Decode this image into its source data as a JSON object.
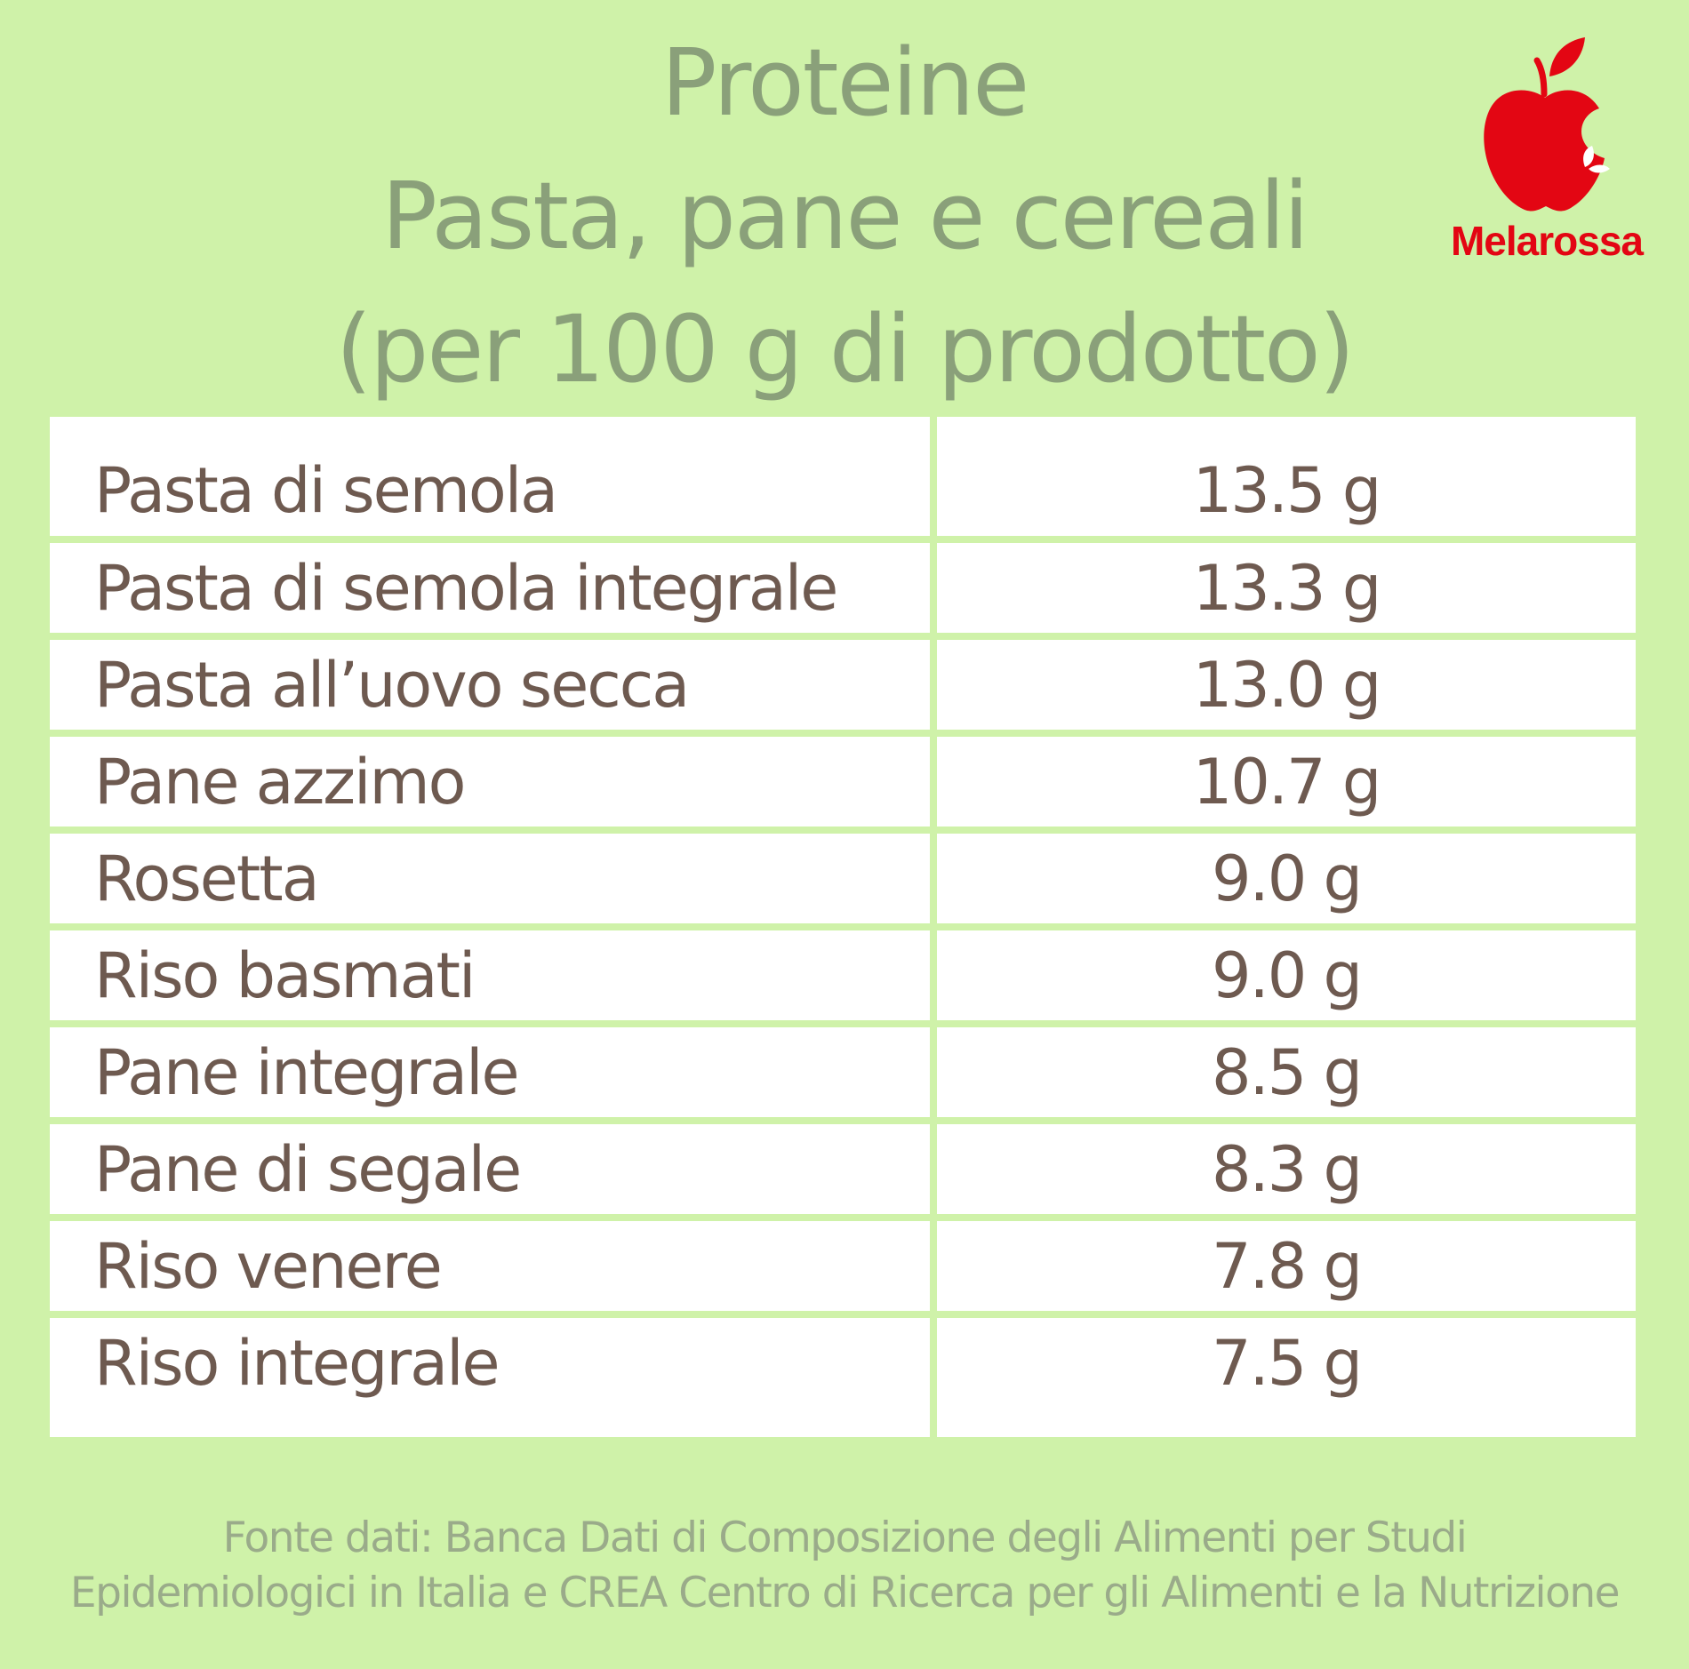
{
  "title": {
    "line1": "Proteine",
    "line2": "Pasta, pane e cereali",
    "line3": "(per 100 g di prodotto)"
  },
  "logo": {
    "brand": "Melarossa",
    "icon": "apple-icon",
    "color": "#e30613"
  },
  "table": {
    "rows": [
      {
        "name": "Pasta di semola",
        "value": "13.5 g"
      },
      {
        "name": "Pasta di semola integrale",
        "value": "13.3 g"
      },
      {
        "name": "Pasta all’uovo secca",
        "value": "13.0 g"
      },
      {
        "name": "Pane azzimo",
        "value": "10.7 g"
      },
      {
        "name": "Rosetta",
        "value": "9.0 g"
      },
      {
        "name": "Riso basmati",
        "value": "9.0 g"
      },
      {
        "name": "Pane integrale",
        "value": "8.5 g"
      },
      {
        "name": "Pane di segale",
        "value": "8.3 g"
      },
      {
        "name": "Riso venere",
        "value": "7.8 g"
      },
      {
        "name": "Riso integrale",
        "value": "7.5 g"
      }
    ]
  },
  "source": {
    "line1": "Fonte dati: Banca Dati di Composizione degli Alimenti per Studi",
    "line2": "Epidemiologici in Italia e CREA Centro di Ricerca per gli Alimenti e la Nutrizione"
  },
  "colors": {
    "background": "#cff2a9",
    "title": "#8aa07a",
    "cell_text": "#6e5a50",
    "source_text": "#9aab8a"
  }
}
